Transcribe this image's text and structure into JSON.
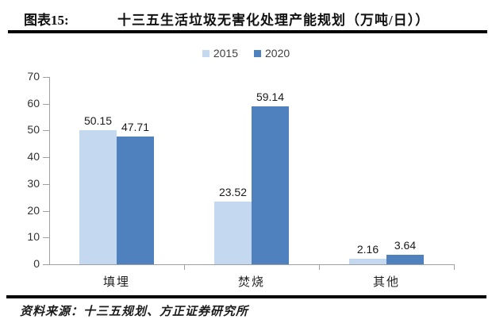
{
  "header": {
    "figure_label": "图表15:",
    "title": "十三五生活垃圾无害化处理产能规划（万吨/日））"
  },
  "chart_data": {
    "type": "bar",
    "title": "十三五生活垃圾无害化处理产能规划（万吨/日））",
    "categories": [
      "填埋",
      "焚烧",
      "其他"
    ],
    "series": [
      {
        "name": "2015",
        "color": "#C4D8F0",
        "values": [
          50.15,
          23.52,
          2.16
        ]
      },
      {
        "name": "2020",
        "color": "#4E81BD",
        "values": [
          47.71,
          59.14,
          3.64
        ]
      }
    ],
    "ylim": [
      0,
      70
    ],
    "ytick_step": 10,
    "yticks": [
      0,
      10,
      20,
      30,
      40,
      50,
      60,
      70
    ],
    "grid": false,
    "legend_position": "top",
    "xlabel": "",
    "ylabel": ""
  },
  "footer": {
    "source": "资料来源：十三五规划、方正证券研究所"
  },
  "colors": {
    "series_2015": "#C4D8F0",
    "series_2020": "#4E81BD",
    "axis": "#A0A0A0",
    "rule": "#000000",
    "label_text": "#1A1A1A"
  }
}
